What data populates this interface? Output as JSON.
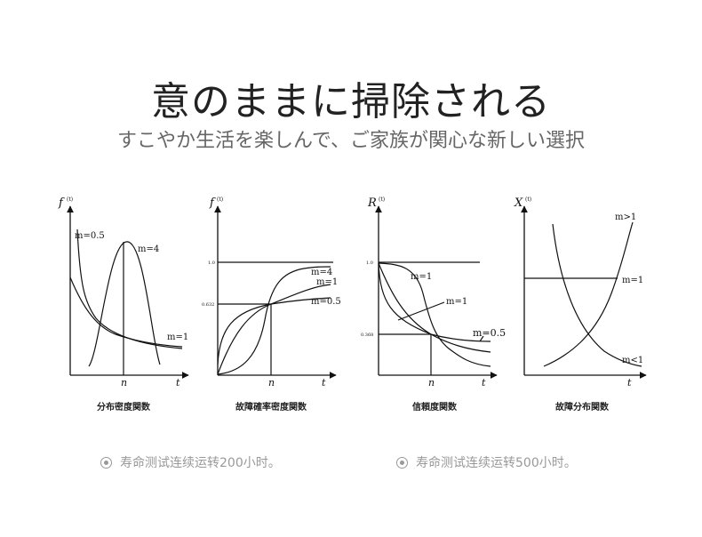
{
  "header": {
    "title": "意のままに掃除される",
    "subtitle": "すこやか生活を楽しんで、ご家族が関心な新しい選択"
  },
  "diagrams": [
    {
      "caption": "分布密度関数",
      "y_axis": "f",
      "y_sup": "(t)",
      "x_axis": "t",
      "x_tick": "n",
      "curve_labels": [
        "m=0.5",
        "m=4",
        "m=1"
      ]
    },
    {
      "caption": "故障確率密度関数",
      "y_axis": "f",
      "y_sup": "(t)",
      "x_axis": "t",
      "x_tick": "n",
      "y_ticks": [
        "1.0",
        "0.632"
      ],
      "curve_labels": [
        "m=4",
        "m=1",
        "m=0.5"
      ]
    },
    {
      "caption": "信頼度関数",
      "y_axis": "R",
      "y_sup": "(t)",
      "x_axis": "t",
      "x_tick": "n",
      "y_ticks": [
        "1.0",
        "0.368"
      ],
      "curve_labels": [
        "m=1",
        "m=1",
        "m=0.5"
      ]
    },
    {
      "caption": "故障分布関数",
      "y_axis": "X",
      "y_sup": "(t)",
      "x_axis": "t",
      "curve_labels": [
        "m>1",
        "m=1",
        "m<1"
      ]
    }
  ],
  "notes": [
    {
      "icon": "target-icon",
      "text": "寿命测试连续运转200小时。"
    },
    {
      "icon": "target-icon",
      "text": "寿命测试连续运转500小时。"
    }
  ]
}
